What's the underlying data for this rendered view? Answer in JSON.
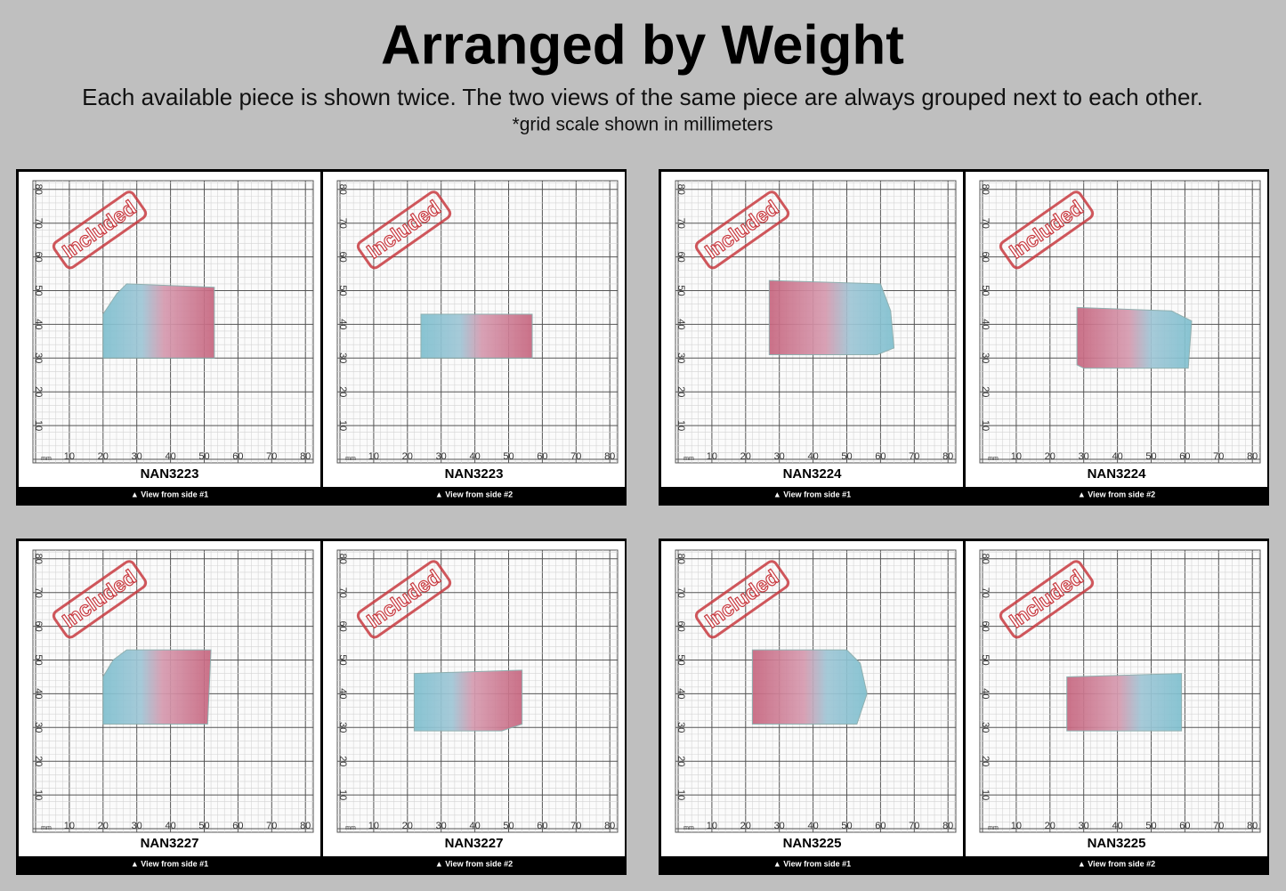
{
  "header": {
    "title": "Arranged by Weight",
    "subtitle": "Each available piece is shown twice. The two views of the same piece are always grouped next to each other.",
    "note": "*grid scale shown in millimeters"
  },
  "grid": {
    "unit": "mm",
    "ticks": [
      10,
      20,
      30,
      40,
      50,
      60,
      70,
      80
    ]
  },
  "groups": [
    {
      "views": [
        {
          "stamp": "Included",
          "label": "NAN3223",
          "caption": "▲ View from side #1"
        },
        {
          "stamp": "Included",
          "label": "NAN3223",
          "caption": "▲ View from side #2"
        }
      ]
    },
    {
      "views": [
        {
          "stamp": "Included",
          "label": "NAN3224",
          "caption": "▲ View from side #1"
        },
        {
          "stamp": "Included",
          "label": "NAN3224",
          "caption": "▲ View from side #2"
        }
      ]
    },
    {
      "views": [
        {
          "stamp": "Included",
          "label": "NAN3227",
          "caption": "▲ View from side #1"
        },
        {
          "stamp": "Included",
          "label": "NAN3227",
          "caption": "▲ View from side #2"
        }
      ]
    },
    {
      "views": [
        {
          "stamp": "Included",
          "label": "NAN3225",
          "caption": "▲ View from side #1"
        },
        {
          "stamp": "Included",
          "label": "NAN3225",
          "caption": "▲ View from side #2"
        }
      ]
    }
  ]
}
